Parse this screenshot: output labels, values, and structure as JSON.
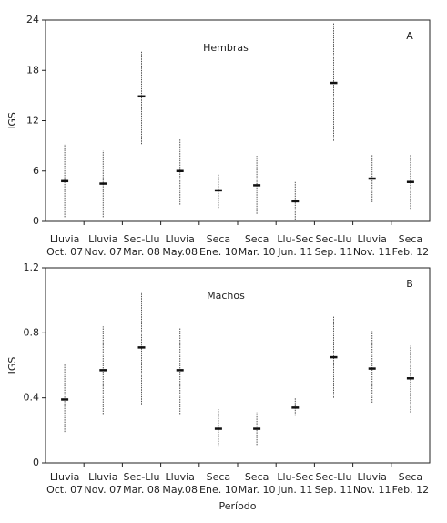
{
  "chart_data": [
    {
      "type": "errorbar",
      "panel_label": "A",
      "annotation": "Hembras",
      "ylabel": "IGS",
      "categories": [
        [
          "Lluvia",
          "Oct. 07"
        ],
        [
          "Lluvia",
          "Nov. 07"
        ],
        [
          "Sec-Llu",
          "Mar. 08"
        ],
        [
          "Lluvia",
          "May.08"
        ],
        [
          "Seca",
          "Ene. 10"
        ],
        [
          "Seca",
          "Mar. 10"
        ],
        [
          "Llu-Sec",
          "Jun. 11"
        ],
        [
          "Sec-Llu",
          "Sep. 11"
        ],
        [
          "Lluvia",
          "Nov. 11"
        ],
        [
          "Seca",
          "Feb. 12"
        ]
      ],
      "values": [
        4.8,
        4.5,
        14.9,
        6.0,
        3.7,
        4.3,
        2.4,
        16.5,
        5.1,
        4.7
      ],
      "low": [
        0.5,
        0.5,
        9.2,
        2.0,
        1.6,
        0.9,
        0.2,
        9.6,
        2.3,
        1.5
      ],
      "high": [
        9.2,
        8.4,
        20.3,
        9.8,
        5.6,
        7.8,
        4.7,
        23.6,
        7.9,
        7.9
      ],
      "color": "#111111",
      "ylim": [
        0,
        24
      ],
      "yticks": [
        0,
        6,
        12,
        18,
        24
      ]
    },
    {
      "type": "errorbar",
      "panel_label": "B",
      "annotation": "Machos",
      "ylabel": "IGS",
      "xlabel": "Período",
      "categories": [
        [
          "Lluvia",
          "Oct. 07"
        ],
        [
          "Lluvia",
          "Nov. 07"
        ],
        [
          "Sec-Llu",
          "Mar. 08"
        ],
        [
          "Lluvia",
          "May.08"
        ],
        [
          "Seca",
          "Ene. 10"
        ],
        [
          "Seca",
          "Mar. 10"
        ],
        [
          "Llu-Sec",
          "Jun. 11"
        ],
        [
          "Sec-Llu",
          "Sep. 11"
        ],
        [
          "Lluvia",
          "Nov. 11"
        ],
        [
          "Seca",
          "Feb. 12"
        ]
      ],
      "values": [
        0.39,
        0.57,
        0.71,
        0.57,
        0.21,
        0.21,
        0.34,
        0.65,
        0.58,
        0.52
      ],
      "low": [
        0.19,
        0.3,
        0.36,
        0.3,
        0.1,
        0.11,
        0.29,
        0.4,
        0.37,
        0.31
      ],
      "high": [
        0.61,
        0.84,
        1.05,
        0.83,
        0.33,
        0.31,
        0.4,
        0.9,
        0.81,
        0.72
      ],
      "color": "#111111",
      "ylim": [
        0,
        1.2
      ],
      "yticks": [
        0,
        0.4,
        0.8,
        1.2
      ]
    }
  ]
}
